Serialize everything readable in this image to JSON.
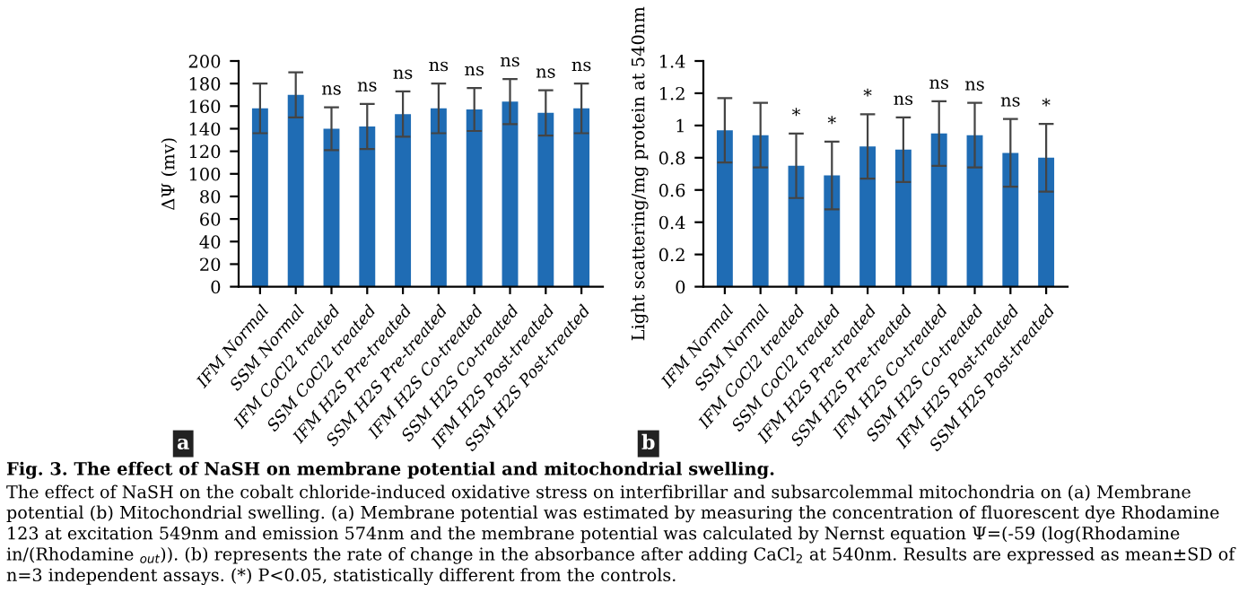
{
  "chart_data": [
    {
      "type": "bar",
      "ylabel": "ΔΨ (mv)",
      "categories": [
        "IFM Normal",
        "SSM Normal",
        "IFM CoCl2 treated",
        "SSM CoCl2 treated",
        "IFM H2S Pre-treated",
        "SSM H2S Pre-treated",
        "IFM H2S Co-treated",
        "SSM H2S Co-treated",
        "IFM H2S Post-treated",
        "SSM H2S Post-treated"
      ],
      "series": [
        {
          "color": "#1f6cb4",
          "values": [
            158,
            170,
            140,
            142,
            153,
            158,
            157,
            164,
            154,
            158
          ],
          "errors": [
            22,
            20,
            19,
            20,
            20,
            22,
            19,
            20,
            20,
            22
          ],
          "value_labels": [
            null,
            null,
            "ns",
            "ns",
            "ns",
            "ns",
            "ns",
            "ns",
            "ns",
            "ns"
          ]
        }
      ],
      "ylim": [
        0,
        200
      ],
      "yticks": [
        0,
        20,
        40,
        60,
        80,
        100,
        120,
        140,
        160,
        180,
        200
      ],
      "grid": false,
      "legend": false,
      "annotations": [
        "a"
      ]
    },
    {
      "type": "bar",
      "ylabel": "Light scattering/mg protein at 540nm",
      "categories": [
        "IFM Normal",
        "SSM Normal",
        "IFM CoCl2 treated",
        "SSM CoCl2 treated",
        "IFM H2S Pre-treated",
        "SSM H2S Pre-treated",
        "IFM H2S Co-treated",
        "SSM H2S Co-treated",
        "IFM H2S Post-treated",
        "SSM H2S Post-treated"
      ],
      "series": [
        {
          "color": "#1f6cb4",
          "values": [
            0.97,
            0.94,
            0.75,
            0.69,
            0.87,
            0.85,
            0.95,
            0.94,
            0.83,
            0.8
          ],
          "errors": [
            0.2,
            0.2,
            0.2,
            0.21,
            0.2,
            0.2,
            0.2,
            0.2,
            0.21,
            0.21
          ],
          "value_labels": [
            null,
            null,
            "*",
            "*",
            "*",
            "ns",
            "ns",
            "ns",
            "ns",
            "*"
          ]
        }
      ],
      "ylim": [
        0,
        1.4
      ],
      "yticks": [
        0,
        0.2,
        0.4,
        0.6,
        0.8,
        1,
        1.2,
        1.4
      ],
      "grid": false,
      "legend": false,
      "annotations": [
        "b",
        "Fig. 3. The effect of NaSH on membrane potential and mitochondrial swelling.",
        "The effect of NaSH on the cobalt chloride-induced oxidative stress on interfibrillar and subsarcolemmal mitochondria on (a) Membrane potential (b) Mitochondrial swelling. (a) Membrane potential was estimated by measuring the concentration of fluorescent dye Rhodamine 123 at excitation 549nm and emission 574nm and the membrane potential was calculated by Nernst equation Ψ=(-59 (log(Rhodamine in/(Rhodamine $_{out}$)). (b) represents the rate of change in the absorbance after adding CaCl$_{2}$ at 540nm. Results are expressed as mean±SD of n=3 independent assays. (*) P<0.05, statistically different from the controls."
      ]
    }
  ]
}
